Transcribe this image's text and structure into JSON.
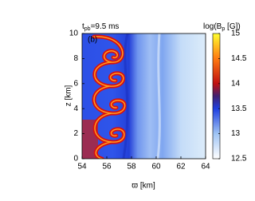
{
  "chart_data": {
    "type": "heatmap",
    "title": {
      "main": "t",
      "sub": "pb",
      "rest": "=9.5 ms"
    },
    "panel_label": "(b)",
    "x_label": "ϖ [km]",
    "y_label": "z [km]",
    "xlim": [
      54,
      64
    ],
    "xticks": [
      54,
      56,
      58,
      60,
      62,
      64
    ],
    "ylim": [
      0,
      10
    ],
    "yticks": [
      0,
      2,
      4,
      6,
      8,
      10
    ],
    "colorbar": {
      "label": {
        "main": "log(B",
        "sub": "p",
        "rest": " [G])"
      },
      "lim": [
        12.5,
        15
      ],
      "ticks": [
        12.5,
        13,
        13.5,
        14,
        14.5,
        15
      ]
    }
  }
}
